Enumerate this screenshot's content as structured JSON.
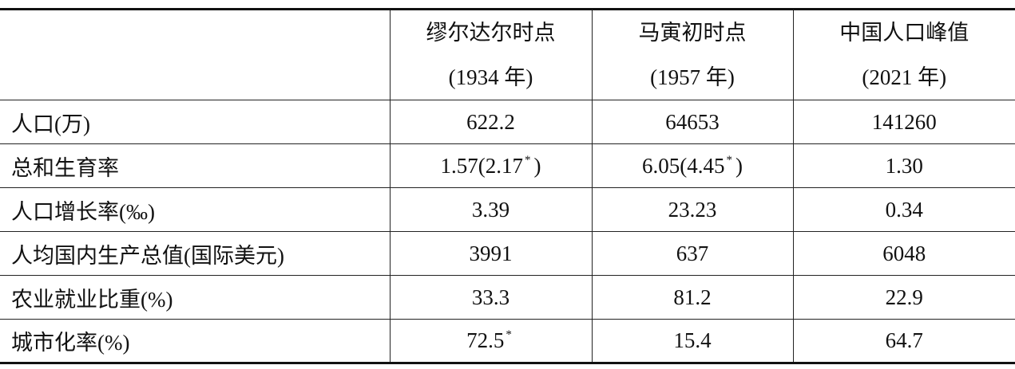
{
  "table": {
    "columns": [
      [
        "缪尔达尔时点",
        "(1934 年)"
      ],
      [
        "马寅初时点",
        "(1957 年)"
      ],
      [
        "中国人口峰值",
        "(2021 年)"
      ]
    ],
    "rows": [
      {
        "label": "人口(万)",
        "cells": [
          "622.2",
          "64653",
          "141260"
        ]
      },
      {
        "label": "总和生育率",
        "cells": [
          {
            "text": "1.57(2.17",
            "note": "*",
            "after": ")"
          },
          {
            "text": "6.05(4.45",
            "note": "*",
            "after": ")"
          },
          "1.30"
        ]
      },
      {
        "label": "人口增长率(‰)",
        "cells": [
          "3.39",
          "23.23",
          "0.34"
        ]
      },
      {
        "label": "人均国内生产总值(国际美元)",
        "cells": [
          "3991",
          "637",
          "6048"
        ]
      },
      {
        "label": "农业就业比重(%)",
        "cells": [
          "33.3",
          "81.2",
          "22.9"
        ]
      },
      {
        "label": "城市化率(%)",
        "cells": [
          {
            "text": "72.5",
            "note": "*"
          },
          "15.4",
          "64.7"
        ]
      }
    ]
  }
}
